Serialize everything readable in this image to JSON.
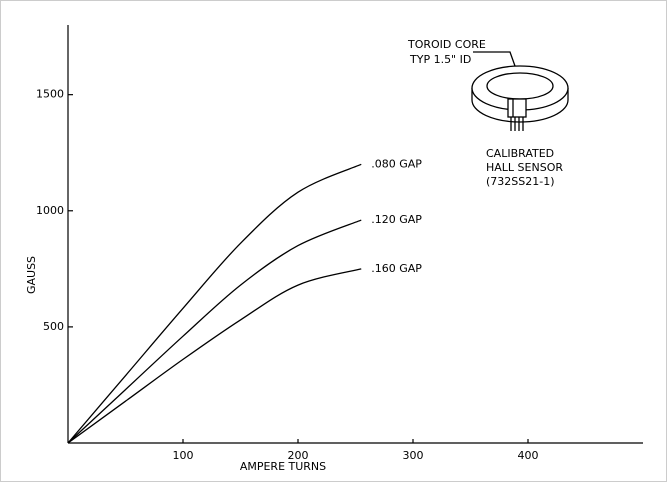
{
  "chart_data": {
    "type": "line",
    "xlabel": "AMPERE TURNS",
    "ylabel": "GAUSS",
    "x": [
      0,
      50,
      100,
      150,
      200,
      255
    ],
    "series": [
      {
        "name": ".080 GAP",
        "color": "#000000",
        "values": [
          0,
          290,
          580,
          860,
          1080,
          1200
        ]
      },
      {
        "name": ".120 GAP",
        "color": "#000000",
        "values": [
          0,
          230,
          460,
          680,
          850,
          960
        ]
      },
      {
        "name": ".160 GAP",
        "color": "#000000",
        "values": [
          0,
          180,
          360,
          530,
          680,
          750
        ]
      }
    ],
    "xlim": [
      0,
      500
    ],
    "ylim": [
      0,
      1800
    ],
    "xticks": [
      100,
      200,
      300,
      400
    ],
    "yticks": [
      500,
      1000,
      1500
    ],
    "annotations": [
      "TOROID CORE",
      "TYP 1.5\" ID",
      "CALIBRATED",
      "HALL SENSOR",
      "(732SS21-1)"
    ]
  }
}
